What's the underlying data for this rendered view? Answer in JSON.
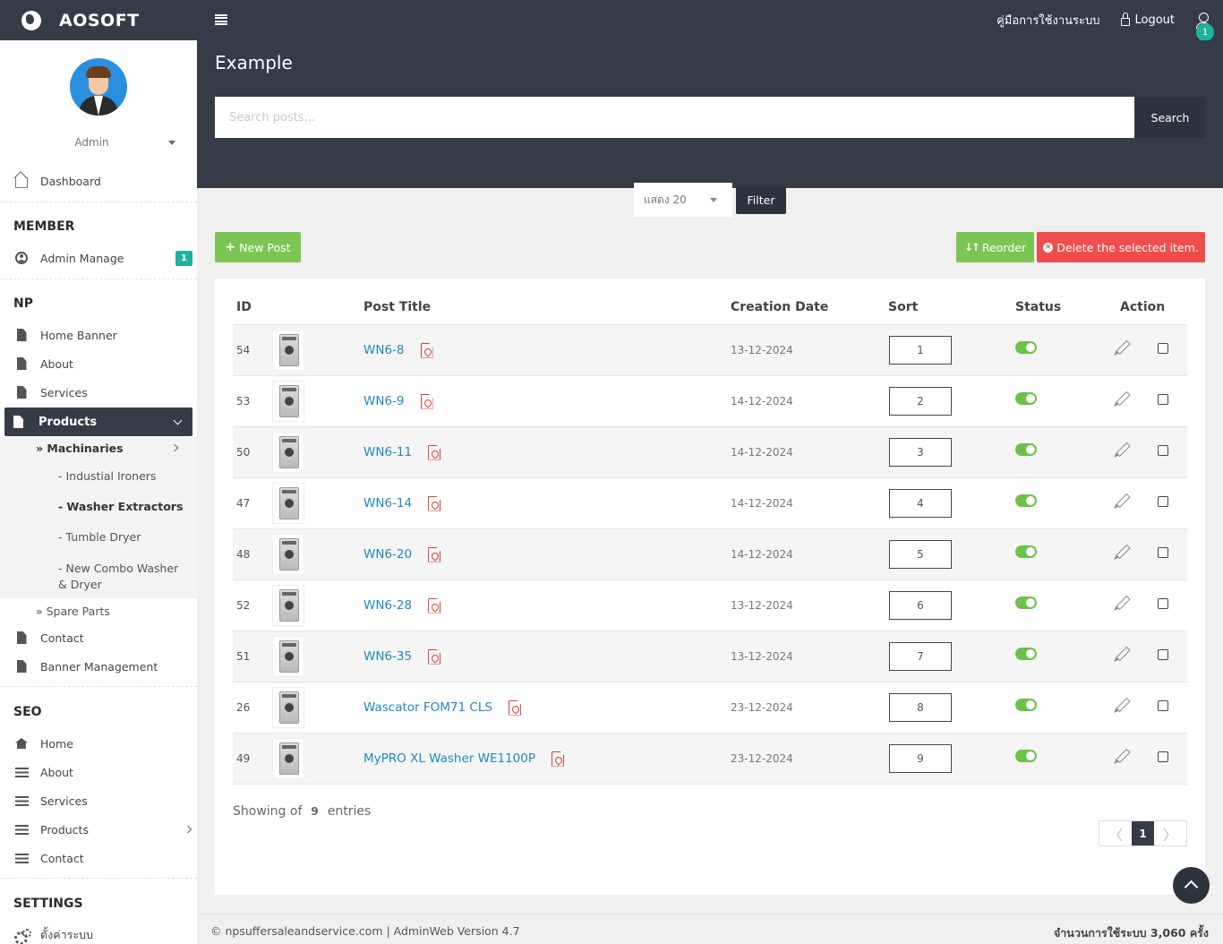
{
  "brand": {
    "title": "AOSOFT"
  },
  "topbar": {
    "manual_label": "คู่มือการใช้งานระบบ",
    "logout_label": "Logout",
    "user_badge": "1"
  },
  "sidebar": {
    "admin_name": "Admin",
    "dashboard": "Dashboard",
    "member_heading": "MEMBER",
    "admin_manage": "Admin Manage",
    "admin_manage_badge": "1",
    "np_heading": "NP",
    "np_items": [
      "Home Banner",
      "About",
      "Services",
      "Products"
    ],
    "machinaries": "» Machinaries",
    "sub_items": [
      "- Industial Ironers",
      "- Washer Extractors",
      "- Tumble Dryer",
      "- New Combo Washer & Dryer"
    ],
    "spare_parts": "» Spare Parts",
    "contact": "Contact",
    "banner_management": "Banner Management",
    "seo_heading": "SEO",
    "seo_items": [
      "Home",
      "About",
      "Services",
      "Products",
      "Contact"
    ],
    "settings_heading": "SETTINGS",
    "settings_item": "ตั้งค่าระบบ"
  },
  "page": {
    "title": "Example"
  },
  "search": {
    "placeholder": "Search posts...",
    "button": "Search"
  },
  "filter": {
    "show_value": "แสดง 20",
    "button": "Filter"
  },
  "actions": {
    "new_post": "New Post",
    "reorder": "Reorder",
    "delete_selected": "Delete the selected item."
  },
  "table": {
    "headers": [
      "ID",
      "Post Title",
      "Creation Date",
      "Sort",
      "Status",
      "Action"
    ],
    "rows": [
      {
        "id": "54",
        "title": "WN6-8",
        "date": "13-12-2024",
        "sort": "1",
        "status": true
      },
      {
        "id": "53",
        "title": "WN6-9",
        "date": "14-12-2024",
        "sort": "2",
        "status": true
      },
      {
        "id": "50",
        "title": "WN6-11",
        "date": "14-12-2024",
        "sort": "3",
        "status": true
      },
      {
        "id": "47",
        "title": "WN6-14",
        "date": "14-12-2024",
        "sort": "4",
        "status": true
      },
      {
        "id": "48",
        "title": "WN6-20",
        "date": "14-12-2024",
        "sort": "5",
        "status": true
      },
      {
        "id": "52",
        "title": "WN6-28",
        "date": "13-12-2024",
        "sort": "6",
        "status": true
      },
      {
        "id": "51",
        "title": "WN6-35",
        "date": "13-12-2024",
        "sort": "7",
        "status": true
      },
      {
        "id": "26",
        "title": "Wascator FOM71 CLS",
        "date": "23-12-2024",
        "sort": "8",
        "status": true
      },
      {
        "id": "49",
        "title": "MyPRO XL Washer WE1100P",
        "date": "23-12-2024",
        "sort": "9",
        "status": true
      }
    ]
  },
  "summary": {
    "prefix": "Showing of",
    "count": "9",
    "suffix": "entries"
  },
  "pagination": {
    "prev": "〈",
    "current": "1",
    "next": "〉"
  },
  "footer": {
    "left": "© npsuffersaleandservice.com | AdminWeb Version 4.7",
    "right": "จำนวนการใช้ระบบ 3,060 ครั้ง"
  },
  "colors": {
    "dark": "#353c48",
    "accent_teal": "#20b2a0",
    "green": "#7cc552",
    "red": "#ef4d4d",
    "link": "#1e88c8"
  }
}
